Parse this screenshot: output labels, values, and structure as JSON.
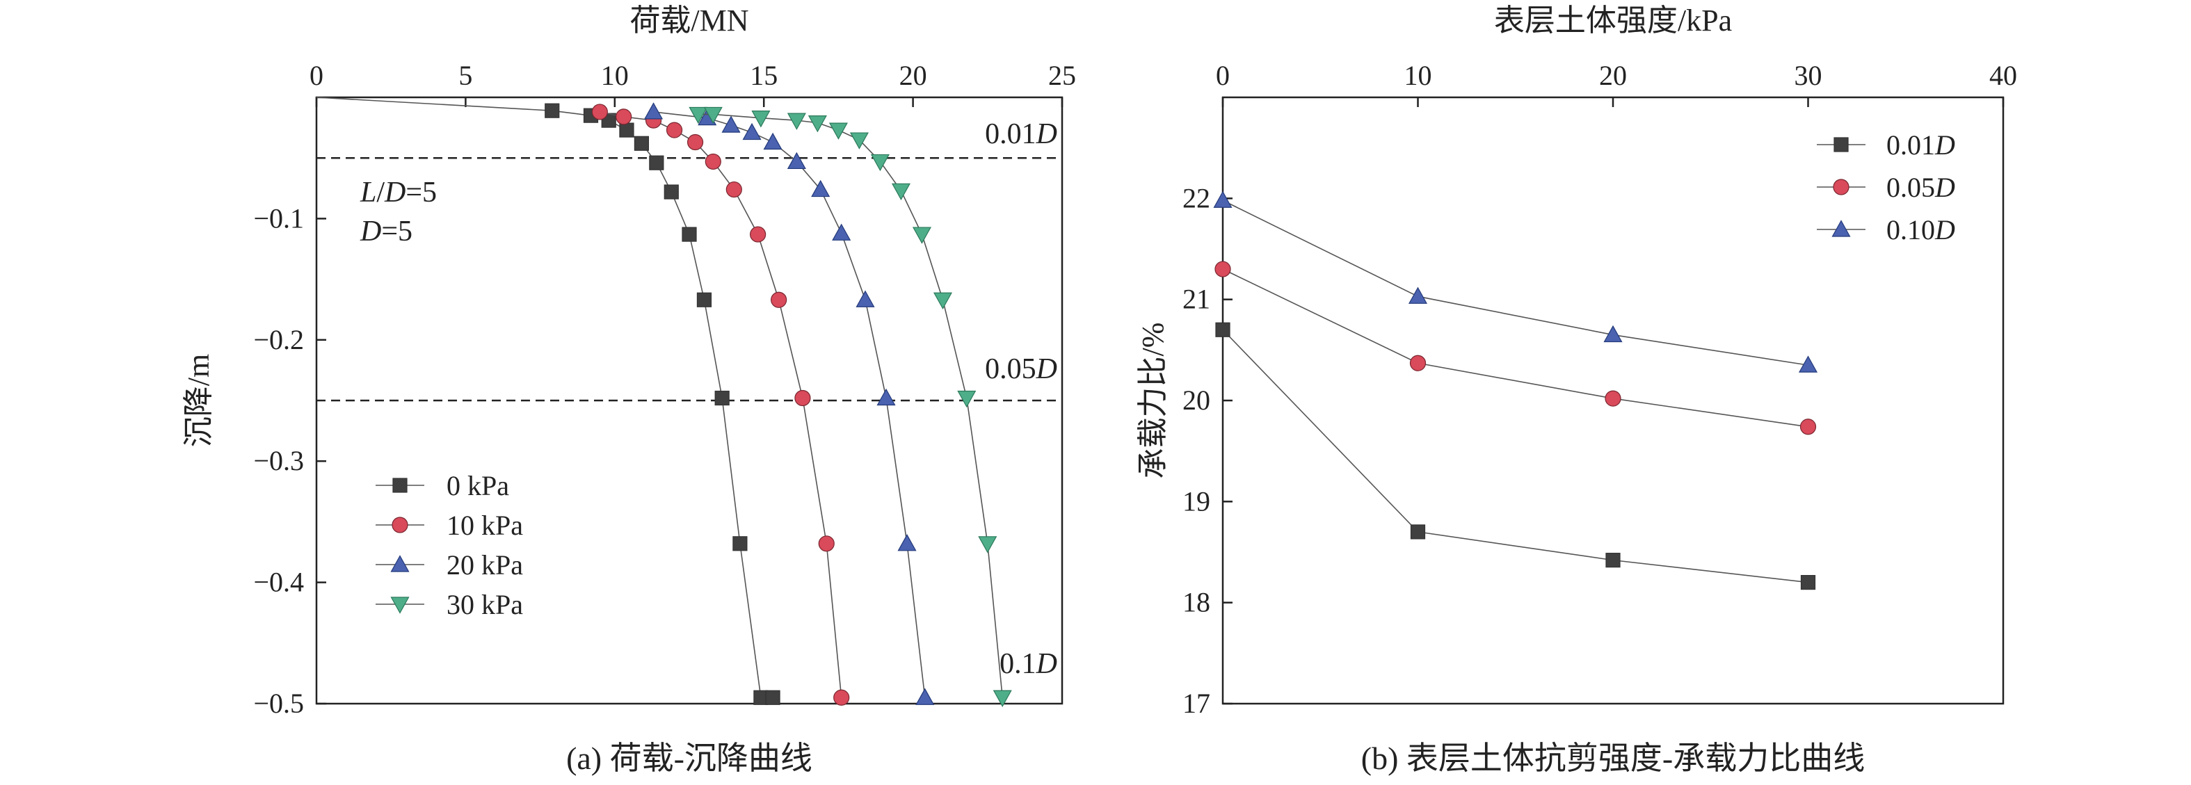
{
  "figure_a": {
    "caption": "(a) 荷载-沉降曲线",
    "annotations": {
      "ld_ratio": "L/D=5",
      "diameter": "D=5",
      "line_001": "0.01D",
      "line_005": "0.05D",
      "line_01": "0.1D"
    }
  },
  "figure_b": {
    "caption": "(b) 表层土体抗剪强度-承载力比曲线"
  },
  "chart_data": [
    {
      "type": "line",
      "xlabel": "荷载/MN",
      "ylabel": "沉降/m",
      "x_axis_position": "top",
      "xlim": [
        0,
        25
      ],
      "ylim": [
        -0.5,
        0
      ],
      "xticks": [
        "0",
        "5",
        "10",
        "15",
        "20",
        "25"
      ],
      "yticks": [
        "−0.1",
        "−0.2",
        "−0.3",
        "−0.4",
        "−0.5"
      ],
      "reference_lines": [
        {
          "y": -0.05,
          "label": "0.01D"
        },
        {
          "y": -0.25,
          "label": "0.05D"
        }
      ],
      "legend_position": "lower-left",
      "series": [
        {
          "name": "0 kPa",
          "marker": "square",
          "color": "#404040",
          "x": [
            0,
            7.9,
            9.2,
            9.8,
            10.4,
            10.9,
            11.4,
            11.9,
            12.5,
            13.0,
            13.6,
            14.2,
            14.9,
            15.3
          ],
          "y": [
            0,
            -0.011,
            -0.015,
            -0.019,
            -0.027,
            -0.038,
            -0.054,
            -0.078,
            -0.113,
            -0.167,
            -0.248,
            -0.368,
            -0.495,
            -0.495
          ]
        },
        {
          "name": "10 kPa",
          "marker": "circle",
          "color": "#d94a5a",
          "x": [
            9.5,
            10.3,
            11.3,
            12.0,
            12.7,
            13.3,
            14.0,
            14.8,
            15.5,
            16.3,
            17.1,
            17.6
          ],
          "y": [
            -0.012,
            -0.016,
            -0.019,
            -0.027,
            -0.037,
            -0.053,
            -0.076,
            -0.113,
            -0.167,
            -0.248,
            -0.368,
            -0.495
          ]
        },
        {
          "name": "20 kPa",
          "marker": "triangle-up",
          "color": "#4a62b0",
          "x": [
            11.3,
            13.1,
            13.9,
            14.6,
            15.3,
            16.1,
            16.9,
            17.6,
            18.4,
            19.1,
            19.8,
            20.4
          ],
          "y": [
            -0.012,
            -0.017,
            -0.023,
            -0.029,
            -0.037,
            -0.053,
            -0.076,
            -0.112,
            -0.167,
            -0.248,
            -0.368,
            -0.495
          ]
        },
        {
          "name": "30 kPa",
          "marker": "triangle-down",
          "color": "#4fae8a",
          "x": [
            12.8,
            13.3,
            14.9,
            16.1,
            16.8,
            17.5,
            18.2,
            18.9,
            19.6,
            20.3,
            21.0,
            21.8,
            22.5,
            23.0
          ],
          "y": [
            -0.014,
            -0.014,
            -0.017,
            -0.019,
            -0.021,
            -0.027,
            -0.035,
            -0.053,
            -0.077,
            -0.113,
            -0.167,
            -0.248,
            -0.368,
            -0.495
          ]
        }
      ]
    },
    {
      "type": "line",
      "xlabel": "表层土体强度/kPa",
      "ylabel": "承载力比/%",
      "x_axis_position": "top",
      "xlim": [
        0,
        40
      ],
      "ylim": [
        17,
        23
      ],
      "xticks": [
        "0",
        "10",
        "20",
        "30",
        "40"
      ],
      "yticks": [
        "17",
        "18",
        "19",
        "20",
        "21",
        "22"
      ],
      "legend_position": "top-right",
      "series": [
        {
          "name": "0.01D",
          "marker": "square",
          "color": "#404040",
          "x": [
            0,
            10,
            20,
            30
          ],
          "y": [
            20.7,
            18.7,
            18.42,
            18.2
          ]
        },
        {
          "name": "0.05D",
          "marker": "circle",
          "color": "#d94a5a",
          "x": [
            0,
            10,
            20,
            30
          ],
          "y": [
            21.3,
            20.37,
            20.02,
            19.74
          ]
        },
        {
          "name": "0.10D",
          "marker": "triangle-up",
          "color": "#4a62b0",
          "x": [
            0,
            10,
            20,
            30
          ],
          "y": [
            21.98,
            21.03,
            20.65,
            20.35
          ]
        }
      ]
    }
  ]
}
